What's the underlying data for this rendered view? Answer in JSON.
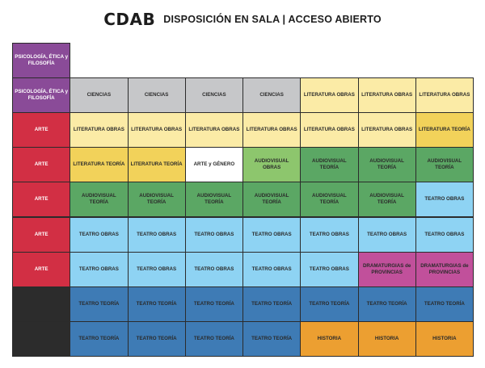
{
  "header": {
    "logo": "CDAB",
    "title": "DISPOSICIÓN EN SALA | ACCESO ABIERTO"
  },
  "colors": {
    "purple": "#8a4b98",
    "red": "#d22f44",
    "gray": "#c6c7c9",
    "light_yellow": "#fbeba6",
    "yellow": "#f2d25a",
    "white": "#ffffff",
    "light_green": "#8dc66d",
    "green": "#5ba764",
    "light_blue": "#8ed3f3",
    "blue": "#3e7bb5",
    "magenta": "#c1509b",
    "orange": "#ec9f31",
    "dark": "#2c2c2c"
  },
  "grid": {
    "top_cell": {
      "label": "PSICOLOGÍA, ÉTICA y FILOSOFÍA",
      "color": "purple"
    },
    "rows": [
      {
        "side": {
          "label": "PSICOLOGÍA, ÉTICA y FILOSOFÍA",
          "color": "purple"
        },
        "cells": [
          {
            "label": "CIENCIAS",
            "color": "gray"
          },
          {
            "label": "CIENCIAS",
            "color": "gray"
          },
          {
            "label": "CIENCIAS",
            "color": "gray"
          },
          {
            "label": "CIENCIAS",
            "color": "gray"
          },
          {
            "label": "LITERATURA OBRAS",
            "color": "light_yellow"
          },
          {
            "label": "LITERATURA OBRAS",
            "color": "light_yellow"
          },
          {
            "label": "LITERATURA OBRAS",
            "color": "light_yellow"
          }
        ]
      },
      {
        "side": {
          "label": "ARTE",
          "color": "red"
        },
        "cells": [
          {
            "label": "LITERATURA OBRAS",
            "color": "light_yellow"
          },
          {
            "label": "LITERATURA OBRAS",
            "color": "light_yellow"
          },
          {
            "label": "LITERATURA OBRAS",
            "color": "light_yellow"
          },
          {
            "label": "LITERATURA OBRAS",
            "color": "light_yellow"
          },
          {
            "label": "LITERATURA OBRAS",
            "color": "light_yellow"
          },
          {
            "label": "LITERATURA OBRAS",
            "color": "light_yellow"
          },
          {
            "label": "LITERATURA TEORÍA",
            "color": "yellow"
          }
        ]
      },
      {
        "side": {
          "label": "ARTE",
          "color": "red"
        },
        "cells": [
          {
            "label": "LITERATURA TEORÍA",
            "color": "yellow"
          },
          {
            "label": "LITERATURA TEORÍA",
            "color": "yellow"
          },
          {
            "label": "ARTE y GÉNERO",
            "color": "white"
          },
          {
            "label": "AUDIOVISUAL OBRAS",
            "color": "light_green"
          },
          {
            "label": "AUDIOVISUAL TEORÍA",
            "color": "green"
          },
          {
            "label": "AUDIOVISUAL TEORÍA",
            "color": "green"
          },
          {
            "label": "AUDIOVISUAL TEORÍA",
            "color": "green"
          }
        ]
      },
      {
        "side": {
          "label": "ARTE",
          "color": "red"
        },
        "cells": [
          {
            "label": "AUDIOVISUAL TEORÍA",
            "color": "green"
          },
          {
            "label": "AUDIOVISUAL TEORÍA",
            "color": "green"
          },
          {
            "label": "AUDIOVISUAL TEORÍA",
            "color": "green"
          },
          {
            "label": "AUDIOVISUAL TEORÍA",
            "color": "green"
          },
          {
            "label": "AUDIOVISUAL TEORÍA",
            "color": "green"
          },
          {
            "label": "AUDIOVISUAL TEORÍA",
            "color": "green"
          },
          {
            "label": "TEATRO OBRAS",
            "color": "light_blue"
          }
        ]
      },
      {
        "side": {
          "label": "ARTE",
          "color": "red"
        },
        "cells": [
          {
            "label": "TEATRO OBRAS",
            "color": "light_blue"
          },
          {
            "label": "TEATRO OBRAS",
            "color": "light_blue"
          },
          {
            "label": "TEATRO OBRAS",
            "color": "light_blue"
          },
          {
            "label": "TEATRO OBRAS",
            "color": "light_blue"
          },
          {
            "label": "TEATRO OBRAS",
            "color": "light_blue"
          },
          {
            "label": "TEATRO OBRAS",
            "color": "light_blue"
          },
          {
            "label": "TEATRO OBRAS",
            "color": "light_blue"
          }
        ]
      },
      {
        "side": {
          "label": "ARTE",
          "color": "red"
        },
        "cells": [
          {
            "label": "TEATRO OBRAS",
            "color": "light_blue"
          },
          {
            "label": "TEATRO OBRAS",
            "color": "light_blue"
          },
          {
            "label": "TEATRO OBRAS",
            "color": "light_blue"
          },
          {
            "label": "TEATRO OBRAS",
            "color": "light_blue"
          },
          {
            "label": "TEATRO OBRAS",
            "color": "light_blue"
          },
          {
            "label": "DRAMATURGIAS de PROVINCIAS",
            "color": "magenta"
          },
          {
            "label": "DRAMATURGIAS de PROVINCIAS",
            "color": "magenta"
          }
        ]
      },
      {
        "side": {
          "label": "",
          "color": "dark"
        },
        "cells": [
          {
            "label": "TEATRO TEORÍA",
            "color": "blue"
          },
          {
            "label": "TEATRO TEORÍA",
            "color": "blue"
          },
          {
            "label": "TEATRO TEORÍA",
            "color": "blue"
          },
          {
            "label": "TEATRO TEORÍA",
            "color": "blue"
          },
          {
            "label": "TEATRO TEORÍA",
            "color": "blue"
          },
          {
            "label": "TEATRO TEORÍA",
            "color": "blue"
          },
          {
            "label": "TEATRO TEORÍA",
            "color": "blue"
          }
        ]
      },
      {
        "side": {
          "label": "",
          "color": "dark"
        },
        "cells": [
          {
            "label": "TEATRO TEORÍA",
            "color": "blue"
          },
          {
            "label": "TEATRO TEORÍA",
            "color": "blue"
          },
          {
            "label": "TEATRO TEORÍA",
            "color": "blue"
          },
          {
            "label": "TEATRO TEORÍA",
            "color": "blue"
          },
          {
            "label": "HISTORIA",
            "color": "orange"
          },
          {
            "label": "HISTORIA",
            "color": "orange"
          },
          {
            "label": "HISTORIA",
            "color": "orange"
          }
        ]
      }
    ]
  }
}
